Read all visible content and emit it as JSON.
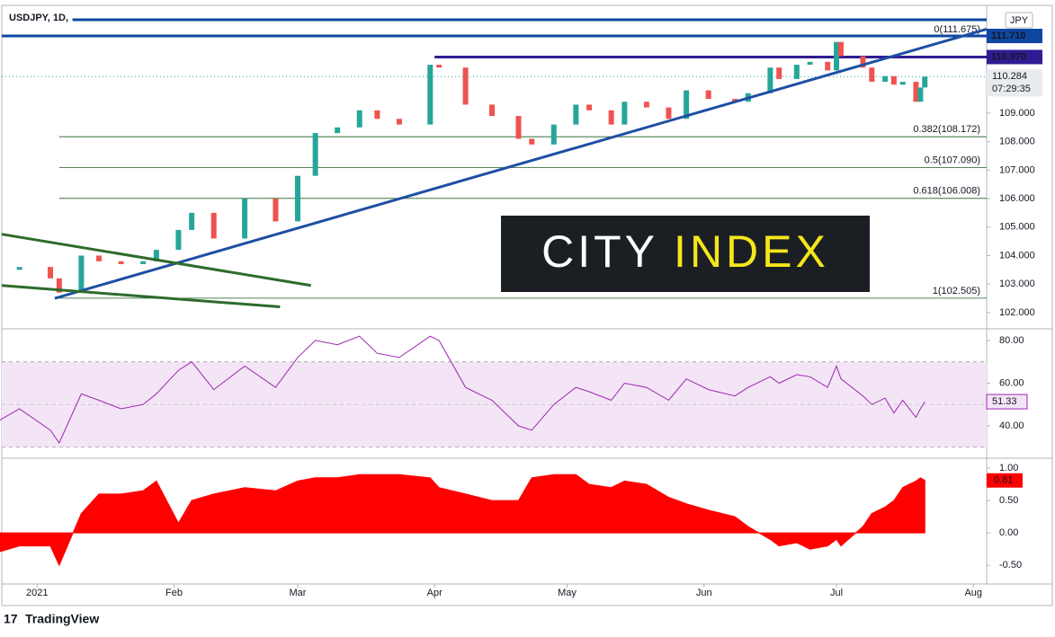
{
  "chart_data": [
    {
      "type": "candlestick",
      "title": "USDJPY, 1D,",
      "currency": "JPY",
      "x": [
        -9,
        -4,
        3,
        5,
        10,
        14,
        19,
        24,
        27,
        32,
        35,
        40,
        47,
        54,
        59,
        63,
        68,
        73,
        77,
        82,
        89,
        91,
        97,
        103,
        109,
        112,
        117,
        122,
        125,
        130,
        133,
        138,
        143,
        147,
        152,
        158,
        161,
        166,
        168,
        172,
        175,
        179,
        181,
        182,
        187,
        189,
        192,
        194,
        196,
        199,
        200,
        201
      ],
      "close": [
        103.5,
        103.6,
        103.2,
        102.7,
        104.0,
        103.8,
        103.7,
        103.8,
        104.2,
        104.9,
        105.5,
        104.6,
        106.0,
        105.2,
        106.8,
        108.3,
        108.5,
        109.1,
        108.8,
        108.6,
        110.7,
        110.6,
        109.3,
        108.9,
        108.1,
        107.9,
        108.6,
        109.3,
        109.1,
        108.6,
        109.4,
        109.2,
        108.8,
        109.8,
        109.5,
        109.4,
        109.7,
        110.6,
        110.2,
        110.7,
        110.8,
        110.5,
        111.5,
        111.0,
        110.6,
        110.1,
        110.3,
        110.0,
        110.1,
        109.4,
        109.9,
        110.284
      ],
      "countdown": "07:29:35",
      "xlim": [
        -8,
        215
      ],
      "xticks": [
        {
          "value": 0,
          "label": "2021"
        },
        {
          "value": 31,
          "label": "Feb"
        },
        {
          "value": 59,
          "label": "Mar"
        },
        {
          "value": 90,
          "label": "Apr"
        },
        {
          "value": 120,
          "label": "May"
        },
        {
          "value": 151,
          "label": "Jun"
        },
        {
          "value": 181,
          "label": "Jul"
        },
        {
          "value": 212,
          "label": "Aug"
        }
      ],
      "ylim": [
        101.46,
        112.72
      ],
      "yticks": [
        {
          "value": 102,
          "label": "102.000"
        },
        {
          "value": 103,
          "label": "103.000"
        },
        {
          "value": 104,
          "label": "104.000"
        },
        {
          "value": 105,
          "label": "105.000"
        },
        {
          "value": 106,
          "label": "106.000"
        },
        {
          "value": 107,
          "label": "107.000"
        },
        {
          "value": 108,
          "label": "108.000"
        },
        {
          "value": 109,
          "label": "109.000"
        }
      ],
      "levels": [
        {
          "value": 112.28,
          "color": "#0d47a1",
          "start": 8
        },
        {
          "value": 111.71,
          "value_label": "111.710",
          "color": "#0d47a1",
          "start": -8
        },
        {
          "value": 110.97,
          "value_label": "110.970",
          "color": "#311b92",
          "start": 90
        }
      ],
      "fib": {
        "start": 5,
        "color": "#1b5e20",
        "levels": [
          {
            "value": 111.675,
            "label": "0(111.675)"
          },
          {
            "value": 108.172,
            "label": "0.382(108.172)"
          },
          {
            "value": 107.09,
            "label": "0.5(107.090)"
          },
          {
            "value": 106.008,
            "label": "0.618(106.008)"
          },
          {
            "value": 102.505,
            "label": "1(102.505)"
          }
        ]
      },
      "trendlines": [
        {
          "color": "#1e4fa3",
          "x": [
            4,
            215
          ],
          "y": [
            102.5,
            111.95
          ]
        },
        {
          "color": "#2e6b2b",
          "x": [
            -8,
            62
          ],
          "y": [
            104.75,
            102.95
          ]
        },
        {
          "color": "#2e6b2b",
          "x": [
            -8,
            55
          ],
          "y": [
            102.95,
            102.2
          ]
        }
      ],
      "up_color": "#26a69a",
      "down_color": "#ef5350",
      "watermark": [
        "CITY",
        "INDEX"
      ],
      "watermark_colors": [
        "#ffffff",
        "#f5e61b"
      ]
    },
    {
      "type": "line",
      "color": "#9c27b0",
      "values": [
        42,
        48,
        38,
        32,
        55,
        52,
        48,
        50,
        55,
        66,
        70,
        57,
        68,
        58,
        72,
        80,
        78,
        82,
        74,
        72,
        82,
        80,
        58,
        52,
        40,
        38,
        50,
        58,
        56,
        52,
        60,
        58,
        52,
        62,
        57,
        54,
        58,
        63,
        60,
        64,
        63,
        58,
        68,
        62,
        54,
        50,
        53,
        46,
        52,
        44,
        48,
        51.33
      ],
      "ylim": [
        25.7,
        84.6
      ],
      "yticks": [
        {
          "value": 40,
          "label": "40.00"
        },
        {
          "value": 60,
          "label": "60.00"
        },
        {
          "value": 80,
          "label": "80.00"
        }
      ],
      "band": [
        30,
        70
      ],
      "midline": 50
    },
    {
      "type": "area",
      "color": "#ff0000",
      "values": [
        -0.3,
        -0.2,
        -0.2,
        -0.5,
        0.3,
        0.6,
        0.6,
        0.65,
        0.8,
        0.15,
        0.5,
        0.6,
        0.7,
        0.65,
        0.8,
        0.85,
        0.85,
        0.9,
        0.9,
        0.9,
        0.85,
        0.7,
        0.6,
        0.5,
        0.5,
        0.85,
        0.9,
        0.9,
        0.75,
        0.7,
        0.8,
        0.75,
        0.55,
        0.45,
        0.35,
        0.25,
        0.1,
        -0.1,
        -0.2,
        -0.15,
        -0.25,
        -0.2,
        -0.1,
        -0.2,
        0.1,
        0.3,
        0.4,
        0.5,
        0.7,
        0.8,
        0.85,
        0.81
      ],
      "ylim": [
        -0.76,
        1.125
      ],
      "yticks": [
        {
          "value": 1,
          "label": "1.00"
        },
        {
          "value": 0.5,
          "label": "0.50"
        },
        {
          "value": 0,
          "label": "0.00"
        },
        {
          "value": -0.5,
          "label": "-0.50"
        }
      ]
    }
  ],
  "footer": {
    "brand": "TradingView"
  }
}
